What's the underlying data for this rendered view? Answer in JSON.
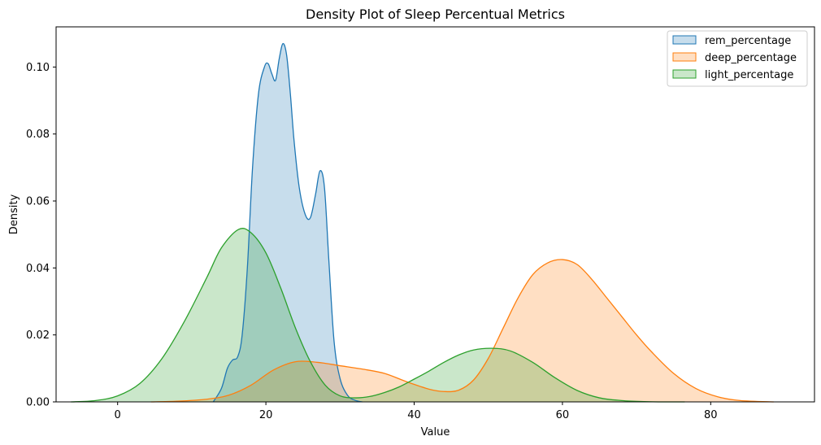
{
  "chart_data": {
    "type": "area",
    "title": "Density Plot of Sleep Percentual Metrics",
    "xlabel": "Value",
    "ylabel": "Density",
    "xlim": [
      -8.3,
      94
    ],
    "ylim": [
      0,
      0.112
    ],
    "xticks": [
      0,
      20,
      40,
      60,
      80
    ],
    "yticks": [
      0.0,
      0.02,
      0.04,
      0.06,
      0.08,
      0.1
    ],
    "xtick_labels": [
      "0",
      "20",
      "40",
      "60",
      "80"
    ],
    "ytick_labels": [
      "0.00",
      "0.02",
      "0.04",
      "0.06",
      "0.08",
      "0.10"
    ],
    "grid": false,
    "legend_position": "top-right",
    "series": [
      {
        "name": "rem_percentage",
        "color": "#1f77b4",
        "x": [
          12.9,
          14.0,
          14.8,
          15.5,
          16.2,
          16.8,
          17.5,
          18.2,
          19.0,
          19.8,
          20.3,
          20.8,
          21.3,
          21.8,
          22.3,
          22.8,
          23.3,
          23.8,
          24.5,
          25.3,
          26.0,
          26.7,
          27.3,
          27.9,
          28.5,
          29.2,
          30.0,
          31.0,
          32.0,
          33.0
        ],
        "y": [
          0.0,
          0.004,
          0.01,
          0.0125,
          0.0135,
          0.02,
          0.04,
          0.07,
          0.092,
          0.1,
          0.101,
          0.098,
          0.096,
          0.1025,
          0.107,
          0.1035,
          0.092,
          0.078,
          0.064,
          0.056,
          0.055,
          0.062,
          0.069,
          0.064,
          0.042,
          0.018,
          0.007,
          0.002,
          0.0005,
          0.0
        ]
      },
      {
        "name": "deep_percentage",
        "color": "#ff7f0e",
        "x": [
          4.5,
          8,
          12,
          15,
          18,
          21,
          24,
          27,
          30,
          33,
          36,
          39,
          42,
          44,
          46,
          48,
          50,
          52,
          54,
          56,
          58,
          60,
          62,
          64,
          66,
          68,
          70,
          72,
          75,
          78,
          81,
          84,
          88.5
        ],
        "y": [
          0.0,
          0.0002,
          0.0008,
          0.002,
          0.005,
          0.0095,
          0.012,
          0.0118,
          0.0108,
          0.0098,
          0.0085,
          0.006,
          0.0038,
          0.0031,
          0.0035,
          0.0065,
          0.013,
          0.022,
          0.031,
          0.038,
          0.0415,
          0.0425,
          0.041,
          0.0365,
          0.031,
          0.0255,
          0.02,
          0.015,
          0.0085,
          0.004,
          0.0015,
          0.0004,
          0.0
        ]
      },
      {
        "name": "light_percentage",
        "color": "#2ca02c",
        "x": [
          -6.3,
          -3,
          0,
          3,
          6,
          9,
          12,
          14,
          16.3,
          18,
          20,
          22,
          24,
          26,
          28,
          30,
          32,
          34,
          36,
          38,
          40,
          42,
          44,
          46,
          48,
          50.5,
          53,
          56,
          59,
          62,
          65,
          68,
          71,
          74,
          76.5
        ],
        "y": [
          0.0,
          0.0004,
          0.0018,
          0.0055,
          0.013,
          0.024,
          0.037,
          0.046,
          0.0515,
          0.0505,
          0.0445,
          0.034,
          0.022,
          0.012,
          0.005,
          0.0018,
          0.0012,
          0.0016,
          0.0028,
          0.0045,
          0.0068,
          0.0092,
          0.0118,
          0.014,
          0.0155,
          0.016,
          0.0152,
          0.0118,
          0.0072,
          0.0034,
          0.0012,
          0.0004,
          0.0001,
          0.0,
          0.0
        ]
      }
    ]
  }
}
